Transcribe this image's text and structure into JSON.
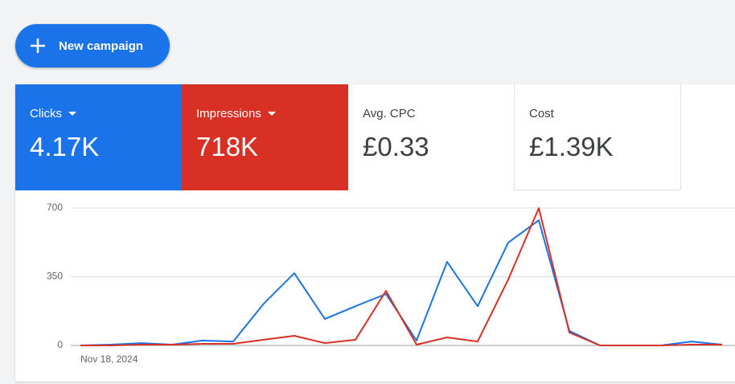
{
  "button": {
    "label": "New campaign"
  },
  "metrics": [
    {
      "label": "Clicks",
      "value": "4.17K"
    },
    {
      "label": "Impressions",
      "value": "718K"
    },
    {
      "label": "Avg. CPC",
      "value": "£0.33"
    },
    {
      "label": "Cost",
      "value": "£1.39K"
    }
  ],
  "chart_data": {
    "type": "line",
    "categories": [
      "Nov 18, 2024",
      null,
      null,
      null,
      null,
      null,
      null,
      null,
      null,
      null,
      null,
      null,
      null,
      null,
      null,
      null,
      null,
      null,
      null,
      null,
      null,
      null
    ],
    "series": [
      {
        "name": "Clicks",
        "color": "#1a73e8",
        "values": [
          0,
          4,
          12,
          4,
          25,
          20,
          213,
          368,
          135,
          200,
          262,
          25,
          426,
          200,
          524,
          638,
          74,
          0,
          0,
          0,
          20,
          4
        ]
      },
      {
        "name": "Impressions",
        "color": "#d93025",
        "values": [
          0,
          0,
          4,
          4,
          8,
          8,
          29,
          49,
          12,
          29,
          278,
          4,
          41,
          20,
          336,
          700,
          66,
          0,
          0,
          0,
          4,
          4
        ]
      }
    ],
    "ylim": [
      0,
      700
    ],
    "yticks": [
      0,
      350,
      700
    ],
    "grid": true
  }
}
